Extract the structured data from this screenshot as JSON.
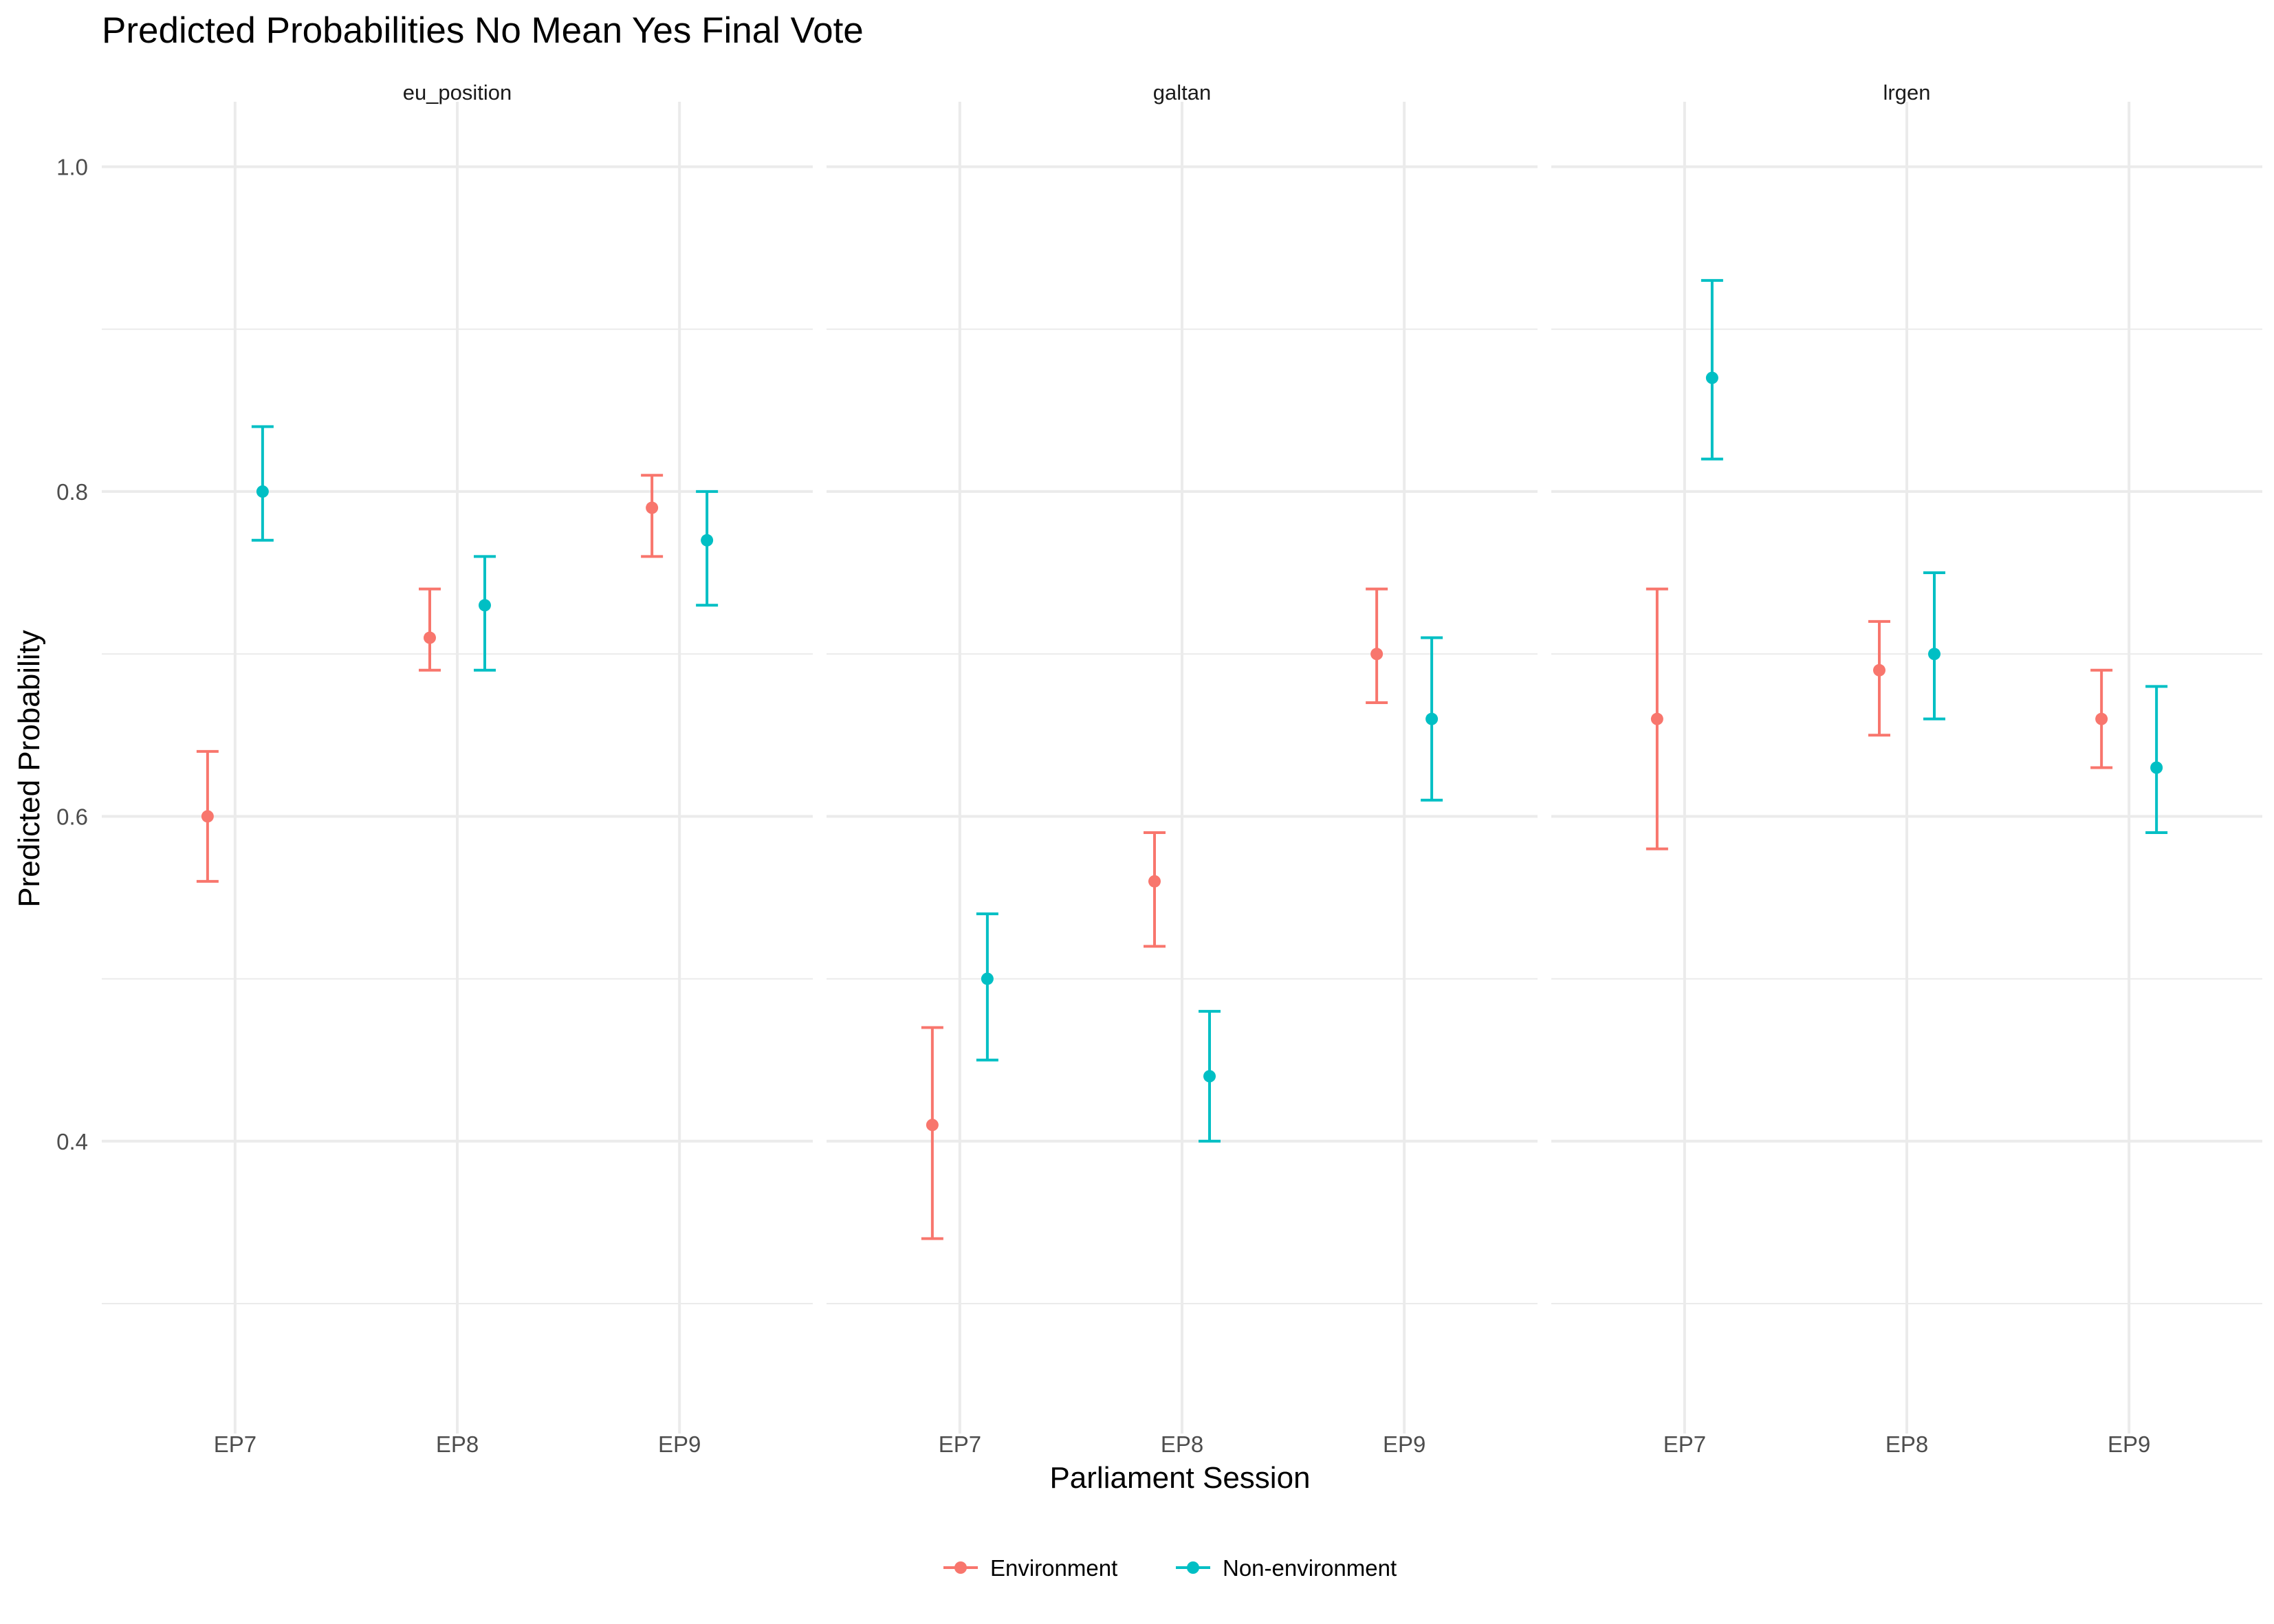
{
  "chart_data": {
    "type": "scatter",
    "title": "Predicted Probabilities No Mean Yes Final Vote",
    "xlabel": "Parliament Session",
    "ylabel": "Predicted Probability",
    "ylim": [
      0.22,
      1.04
    ],
    "yticks": [
      0.4,
      0.6,
      0.8,
      1.0
    ],
    "ytick_labels": [
      "0.4",
      "0.6",
      "0.8",
      "1.0"
    ],
    "categories": [
      "EP7",
      "EP8",
      "EP9"
    ],
    "grid": true,
    "legend_position": "bottom",
    "legend": [
      {
        "name": "Environment",
        "color": "#F8766D"
      },
      {
        "name": "Non-environment",
        "color": "#00BFC4"
      }
    ],
    "panels": [
      {
        "label": "eu_position",
        "series": [
          {
            "name": "Environment",
            "values": [
              0.6,
              0.71,
              0.79
            ],
            "lower": [
              0.56,
              0.69,
              0.76
            ],
            "upper": [
              0.64,
              0.74,
              0.81
            ]
          },
          {
            "name": "Non-environment",
            "values": [
              0.8,
              0.73,
              0.77
            ],
            "lower": [
              0.77,
              0.69,
              0.73
            ],
            "upper": [
              0.84,
              0.76,
              0.8
            ]
          }
        ]
      },
      {
        "label": "galtan",
        "series": [
          {
            "name": "Environment",
            "values": [
              0.41,
              0.56,
              0.7
            ],
            "lower": [
              0.34,
              0.52,
              0.67
            ],
            "upper": [
              0.47,
              0.59,
              0.74
            ]
          },
          {
            "name": "Non-environment",
            "values": [
              0.5,
              0.44,
              0.66
            ],
            "lower": [
              0.45,
              0.4,
              0.61
            ],
            "upper": [
              0.54,
              0.48,
              0.71
            ]
          }
        ]
      },
      {
        "label": "lrgen",
        "series": [
          {
            "name": "Environment",
            "values": [
              0.66,
              0.69,
              0.66
            ],
            "lower": [
              0.58,
              0.65,
              0.63
            ],
            "upper": [
              0.74,
              0.72,
              0.69
            ]
          },
          {
            "name": "Non-environment",
            "values": [
              0.87,
              0.7,
              0.63
            ],
            "lower": [
              0.82,
              0.66,
              0.59
            ],
            "upper": [
              0.93,
              0.75,
              0.68
            ]
          }
        ]
      }
    ]
  }
}
